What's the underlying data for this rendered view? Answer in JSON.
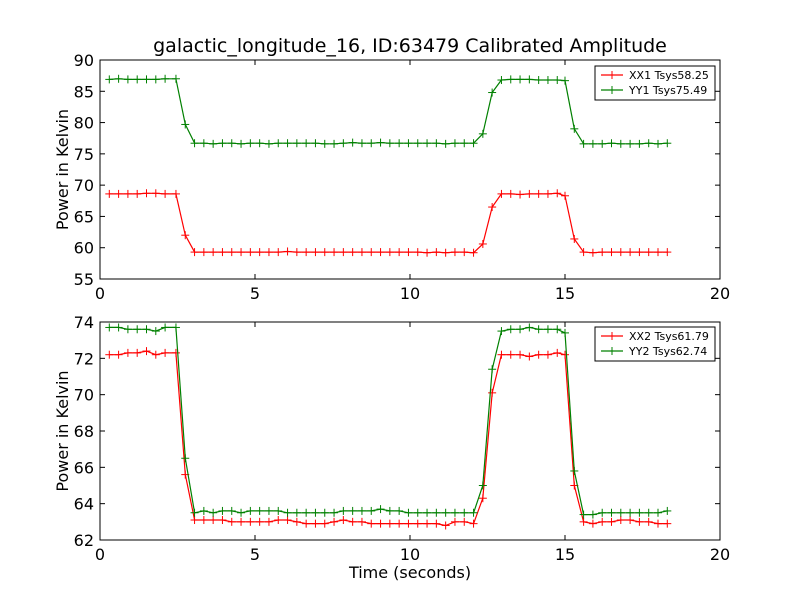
{
  "title": "galactic_longitude_16, ID:63479 Calibrated Amplitude",
  "xlabel": "Time (seconds)",
  "chart_data": [
    {
      "type": "line",
      "title": "galactic_longitude_16, ID:63479 Calibrated Amplitude",
      "xlabel": "",
      "ylabel": "Power in Kelvin",
      "xlim": [
        0,
        20
      ],
      "ylim": [
        55,
        90
      ],
      "xticks": [
        0,
        5,
        10,
        15,
        20
      ],
      "yticks": [
        55,
        60,
        65,
        70,
        75,
        80,
        85,
        90
      ],
      "legend_position": "top-right",
      "series": [
        {
          "name": "XX1 Tsys58.25",
          "color": "#ff0000",
          "x": [
            0.3,
            0.6,
            0.9,
            1.2,
            1.5,
            1.8,
            2.1,
            2.45,
            2.75,
            3.05,
            3.35,
            3.65,
            3.95,
            4.25,
            4.55,
            4.85,
            5.15,
            5.45,
            5.75,
            6.05,
            6.35,
            6.65,
            6.95,
            7.25,
            7.55,
            7.85,
            8.15,
            8.45,
            8.75,
            9.05,
            9.35,
            9.65,
            9.95,
            10.25,
            10.55,
            10.85,
            11.15,
            11.45,
            11.75,
            12.05,
            12.35,
            12.65,
            12.95,
            13.25,
            13.55,
            13.85,
            14.15,
            14.45,
            14.75,
            15.0,
            15.3,
            15.6,
            15.9,
            16.2,
            16.5,
            16.8,
            17.1,
            17.4,
            17.7,
            18.0,
            18.3
          ],
          "values": [
            68.6,
            68.6,
            68.6,
            68.6,
            68.7,
            68.7,
            68.6,
            68.6,
            62.0,
            59.3,
            59.3,
            59.3,
            59.3,
            59.3,
            59.3,
            59.3,
            59.3,
            59.3,
            59.3,
            59.4,
            59.3,
            59.3,
            59.3,
            59.3,
            59.3,
            59.3,
            59.3,
            59.3,
            59.3,
            59.3,
            59.3,
            59.3,
            59.3,
            59.3,
            59.2,
            59.3,
            59.2,
            59.3,
            59.3,
            59.2,
            60.6,
            66.5,
            68.6,
            68.6,
            68.5,
            68.6,
            68.6,
            68.6,
            68.7,
            68.3,
            61.4,
            59.3,
            59.2,
            59.3,
            59.3,
            59.3,
            59.3,
            59.3,
            59.3,
            59.3,
            59.3
          ]
        },
        {
          "name": "YY1 Tsys75.49",
          "color": "#008000",
          "x": [
            0.3,
            0.6,
            0.9,
            1.2,
            1.5,
            1.8,
            2.1,
            2.45,
            2.75,
            3.05,
            3.35,
            3.65,
            3.95,
            4.25,
            4.55,
            4.85,
            5.15,
            5.45,
            5.75,
            6.05,
            6.35,
            6.65,
            6.95,
            7.25,
            7.55,
            7.85,
            8.15,
            8.45,
            8.75,
            9.05,
            9.35,
            9.65,
            9.95,
            10.25,
            10.55,
            10.85,
            11.15,
            11.45,
            11.75,
            12.05,
            12.35,
            12.65,
            12.95,
            13.25,
            13.55,
            13.85,
            14.15,
            14.45,
            14.75,
            15.0,
            15.3,
            15.6,
            15.9,
            16.2,
            16.5,
            16.8,
            17.1,
            17.4,
            17.7,
            18.0,
            18.3
          ],
          "values": [
            86.9,
            87.0,
            86.9,
            86.9,
            86.9,
            86.9,
            87.0,
            87.0,
            79.7,
            76.7,
            76.7,
            76.6,
            76.7,
            76.7,
            76.6,
            76.7,
            76.7,
            76.6,
            76.7,
            76.7,
            76.7,
            76.7,
            76.7,
            76.6,
            76.6,
            76.7,
            76.8,
            76.7,
            76.7,
            76.8,
            76.7,
            76.7,
            76.7,
            76.7,
            76.7,
            76.7,
            76.6,
            76.7,
            76.7,
            76.7,
            78.2,
            84.8,
            86.8,
            86.9,
            86.9,
            86.9,
            86.8,
            86.8,
            86.8,
            86.7,
            79.0,
            76.6,
            76.6,
            76.6,
            76.7,
            76.6,
            76.6,
            76.6,
            76.7,
            76.6,
            76.7
          ]
        }
      ]
    },
    {
      "type": "line",
      "title": "",
      "xlabel": "Time (seconds)",
      "ylabel": "Power in Kelvin",
      "xlim": [
        0,
        20
      ],
      "ylim": [
        62,
        74
      ],
      "xticks": [
        0,
        5,
        10,
        15,
        20
      ],
      "yticks": [
        62,
        64,
        66,
        68,
        70,
        72,
        74
      ],
      "legend_position": "top-right",
      "series": [
        {
          "name": "XX2 Tsys61.79",
          "color": "#ff0000",
          "x": [
            0.3,
            0.6,
            0.9,
            1.2,
            1.5,
            1.8,
            2.1,
            2.45,
            2.75,
            3.05,
            3.35,
            3.65,
            3.95,
            4.25,
            4.55,
            4.85,
            5.15,
            5.45,
            5.75,
            6.05,
            6.35,
            6.65,
            6.95,
            7.25,
            7.55,
            7.85,
            8.15,
            8.45,
            8.75,
            9.05,
            9.35,
            9.65,
            9.95,
            10.25,
            10.55,
            10.85,
            11.15,
            11.45,
            11.75,
            12.05,
            12.35,
            12.65,
            12.95,
            13.25,
            13.55,
            13.85,
            14.15,
            14.45,
            14.75,
            15.0,
            15.3,
            15.6,
            15.9,
            16.2,
            16.5,
            16.8,
            17.1,
            17.4,
            17.7,
            18.0,
            18.3
          ],
          "values": [
            72.2,
            72.2,
            72.3,
            72.3,
            72.4,
            72.2,
            72.3,
            72.3,
            65.6,
            63.1,
            63.1,
            63.1,
            63.1,
            63.0,
            63.0,
            63.0,
            63.0,
            63.0,
            63.1,
            63.1,
            63.0,
            62.9,
            62.9,
            62.9,
            63.0,
            63.1,
            63.0,
            63.0,
            62.9,
            62.9,
            62.9,
            62.9,
            62.9,
            62.9,
            62.9,
            62.9,
            62.8,
            63.0,
            63.0,
            62.9,
            64.3,
            70.1,
            72.2,
            72.2,
            72.2,
            72.1,
            72.2,
            72.2,
            72.3,
            72.2,
            65.0,
            63.0,
            62.9,
            63.0,
            63.0,
            63.1,
            63.1,
            63.0,
            63.0,
            62.9,
            62.9
          ]
        },
        {
          "name": "YY2 Tsys62.74",
          "color": "#008000",
          "x": [
            0.3,
            0.6,
            0.9,
            1.2,
            1.5,
            1.8,
            2.1,
            2.45,
            2.75,
            3.05,
            3.35,
            3.65,
            3.95,
            4.25,
            4.55,
            4.85,
            5.15,
            5.45,
            5.75,
            6.05,
            6.35,
            6.65,
            6.95,
            7.25,
            7.55,
            7.85,
            8.15,
            8.45,
            8.75,
            9.05,
            9.35,
            9.65,
            9.95,
            10.25,
            10.55,
            10.85,
            11.15,
            11.45,
            11.75,
            12.05,
            12.35,
            12.65,
            12.95,
            13.25,
            13.55,
            13.85,
            14.15,
            14.45,
            14.75,
            15.0,
            15.3,
            15.6,
            15.9,
            16.2,
            16.5,
            16.8,
            17.1,
            17.4,
            17.7,
            18.0,
            18.3
          ],
          "values": [
            73.7,
            73.7,
            73.6,
            73.6,
            73.6,
            73.5,
            73.7,
            73.7,
            66.5,
            63.5,
            63.6,
            63.5,
            63.6,
            63.6,
            63.5,
            63.6,
            63.6,
            63.6,
            63.6,
            63.5,
            63.5,
            63.5,
            63.5,
            63.5,
            63.5,
            63.6,
            63.6,
            63.6,
            63.6,
            63.7,
            63.6,
            63.6,
            63.5,
            63.5,
            63.5,
            63.5,
            63.5,
            63.5,
            63.5,
            63.5,
            65.0,
            71.4,
            73.5,
            73.6,
            73.6,
            73.7,
            73.6,
            73.6,
            73.6,
            73.4,
            65.8,
            63.4,
            63.4,
            63.5,
            63.5,
            63.5,
            63.5,
            63.5,
            63.5,
            63.5,
            63.6
          ]
        }
      ]
    }
  ]
}
